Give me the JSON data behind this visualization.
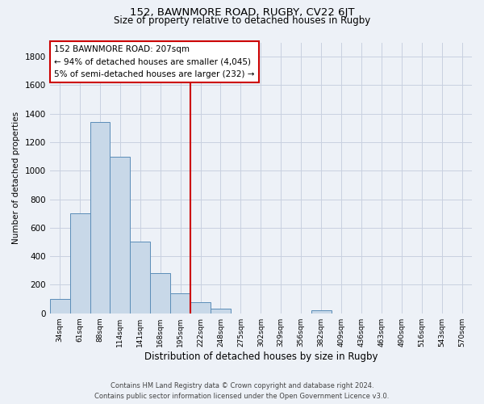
{
  "title_line1": "152, BAWNMORE ROAD, RUGBY, CV22 6JT",
  "title_line2": "Size of property relative to detached houses in Rugby",
  "xlabel": "Distribution of detached houses by size in Rugby",
  "ylabel": "Number of detached properties",
  "bin_labels": [
    "34sqm",
    "61sqm",
    "88sqm",
    "114sqm",
    "141sqm",
    "168sqm",
    "195sqm",
    "222sqm",
    "248sqm",
    "275sqm",
    "302sqm",
    "329sqm",
    "356sqm",
    "382sqm",
    "409sqm",
    "436sqm",
    "463sqm",
    "490sqm",
    "516sqm",
    "543sqm",
    "570sqm"
  ],
  "bar_heights": [
    100,
    700,
    1340,
    1100,
    500,
    280,
    140,
    75,
    30,
    0,
    0,
    0,
    0,
    20,
    0,
    0,
    0,
    0,
    0,
    0,
    0
  ],
  "bar_color": "#c8d8e8",
  "bar_edge_color": "#5b8db8",
  "vline_x": 6.5,
  "vline_color": "#cc0000",
  "annotation_title": "152 BAWNMORE ROAD: 207sqm",
  "annotation_line1": "← 94% of detached houses are smaller (4,045)",
  "annotation_line2": "5% of semi-detached houses are larger (232) →",
  "annotation_box_facecolor": "#ffffff",
  "annotation_box_edgecolor": "#cc0000",
  "ylim": [
    0,
    1900
  ],
  "yticks": [
    0,
    200,
    400,
    600,
    800,
    1000,
    1200,
    1400,
    1600,
    1800
  ],
  "grid_color": "#c8d0e0",
  "background_color": "#edf1f7",
  "footnote1": "Contains HM Land Registry data © Crown copyright and database right 2024.",
  "footnote2": "Contains public sector information licensed under the Open Government Licence v3.0."
}
